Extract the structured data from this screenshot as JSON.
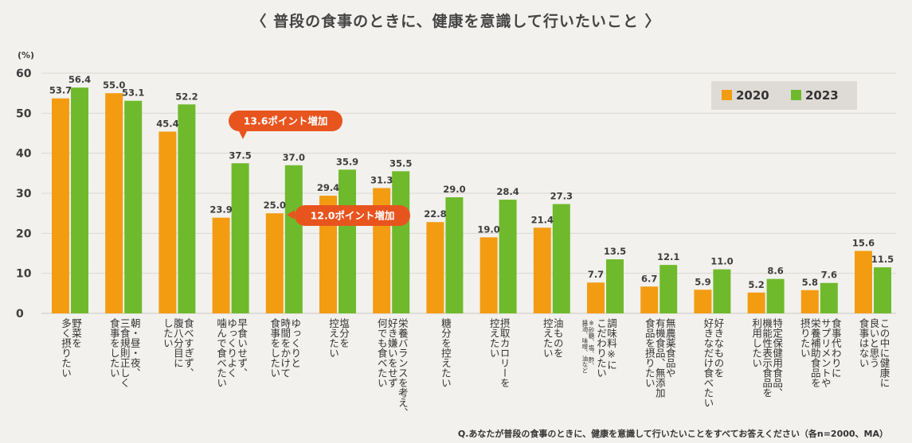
{
  "title": "〈 普段の食事のときに、健康を意識して行いたいこと 〉",
  "footnote": "Q.あなたが普段の食事のときに、健康を意識して行いたいことをすべてお答えください（各n=2000、MA）",
  "colors": {
    "s2020": "#f39c12",
    "s2023": "#6fba2c",
    "callout": "#e8541e",
    "grid": "#d9d6d0"
  },
  "chart_data": {
    "type": "bar",
    "ylabel": "(%)",
    "ylim": [
      0,
      60
    ],
    "yticks": [
      0,
      10,
      20,
      30,
      40,
      50,
      60
    ],
    "legend_position": "top-right",
    "series": [
      {
        "name": "2020",
        "values": [
          53.7,
          55.0,
          45.4,
          23.9,
          25.0,
          29.4,
          31.3,
          22.8,
          19.0,
          21.4,
          7.7,
          6.7,
          5.9,
          5.2,
          5.8,
          15.6
        ]
      },
      {
        "name": "2023",
        "values": [
          56.4,
          53.1,
          52.2,
          37.5,
          37.0,
          35.9,
          35.5,
          29.0,
          28.4,
          27.3,
          13.5,
          12.1,
          11.0,
          8.6,
          7.6,
          11.5
        ]
      }
    ],
    "categories": [
      {
        "lines": [
          "野菜を",
          "多く摂りたい"
        ]
      },
      {
        "lines": [
          "朝・昼・夜、",
          "三食規則正しく",
          "食事をしたい"
        ]
      },
      {
        "lines": [
          "食べすぎず、",
          "腹八分目に",
          "したい"
        ]
      },
      {
        "lines": [
          "早食いせず、",
          "ゆっくりよく",
          "噛んで食べたい"
        ]
      },
      {
        "lines": [
          "ゆっくりと",
          "時間をかけて",
          "食事をしたい"
        ]
      },
      {
        "lines": [
          "塩分を",
          "控えたい"
        ]
      },
      {
        "lines": [
          "栄養バランスを考え、",
          "好き嫌いをせず",
          "何でも食べたい"
        ]
      },
      {
        "lines": [
          "糖分を控えたい"
        ]
      },
      {
        "lines": [
          "摂取カロリーを",
          "控えたい"
        ]
      },
      {
        "lines": [
          "油ものを",
          "控えたい"
        ]
      },
      {
        "lines": [
          "調味料※に",
          "こだわりたい"
        ],
        "note_lines": [
          "※砂糖、塩、酢、",
          "醤油、味噌、油など"
        ]
      },
      {
        "lines": [
          "無農薬食品や",
          "有機食品、無添加",
          "食品を摂りたい"
        ]
      },
      {
        "lines": [
          "好きなものを",
          "好きなだけ食べたい"
        ]
      },
      {
        "lines": [
          "特定保健用食品、",
          "機能性表示食品を",
          "利用したい"
        ]
      },
      {
        "lines": [
          "食事代わりに",
          "サプリメントや",
          "栄養補助食品を",
          "摂りたい"
        ]
      },
      {
        "lines": [
          "この中に健康に",
          "良いと思う",
          "食事はない"
        ]
      }
    ],
    "annotations": [
      {
        "text": "13.6ポイント増加",
        "category_index": 3
      },
      {
        "text": "12.0ポイント増加",
        "category_index": 4
      }
    ]
  }
}
